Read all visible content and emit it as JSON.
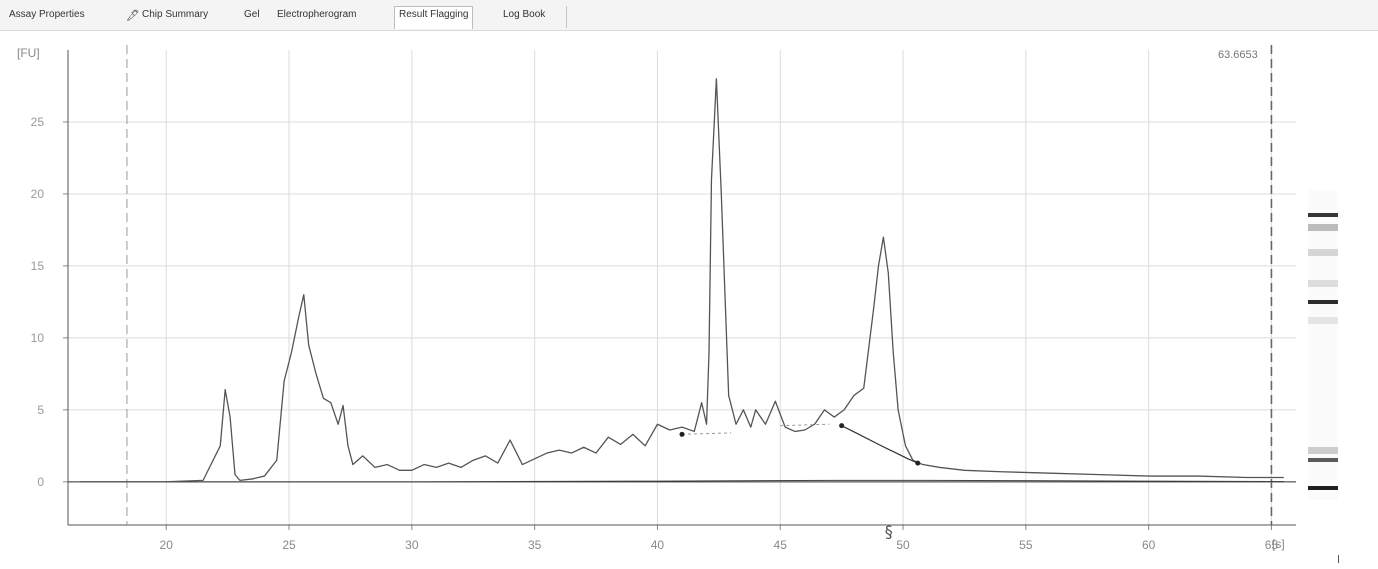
{
  "tabs": [
    {
      "label": "Assay Properties",
      "active": false
    },
    {
      "label": "Chip Summary",
      "active": false,
      "icon": "chip-icon"
    },
    {
      "label": "Gel",
      "active": false
    },
    {
      "label": "Electropherogram",
      "active": false
    },
    {
      "label": "Result Flagging",
      "active": true
    },
    {
      "label": "Log Book",
      "active": false
    }
  ],
  "chart_data": {
    "type": "line",
    "title": "",
    "ylabel": "[FU]",
    "xlabel": "[s]",
    "xlim": [
      16,
      66
    ],
    "ylim": [
      -3,
      30
    ],
    "x_ticks": [
      20,
      25,
      30,
      35,
      40,
      45,
      50,
      55,
      60,
      65
    ],
    "y_ticks": [
      0,
      5,
      10,
      15,
      20,
      25
    ],
    "grid": true,
    "marker_readout": "63.6653",
    "cursor_lines_x": [
      18.4,
      65.0
    ],
    "series": [
      {
        "x": [
          16.5,
          18,
          20,
          21.5,
          22.2,
          22.4,
          22.6,
          22.8,
          23.0,
          23.5,
          24.0,
          24.5,
          24.8,
          25.1,
          25.4,
          25.6,
          25.8,
          26.1,
          26.4,
          26.7,
          27.0,
          27.2,
          27.4,
          27.6,
          28.0,
          28.5,
          29.0,
          29.5,
          30.0,
          30.5,
          31.0,
          31.5,
          32.0,
          32.5,
          33.0,
          33.5,
          34.0,
          34.5,
          35.0,
          35.5,
          36.0,
          36.5,
          37.0,
          37.5,
          38.0,
          38.5,
          39.0,
          39.5,
          40.0,
          40.5,
          41.0,
          41.5,
          41.8,
          42.0,
          42.1,
          42.2,
          42.4,
          42.6,
          42.9,
          43.2,
          43.5,
          43.8,
          44.0,
          44.4,
          44.8,
          45.2,
          45.6,
          46.0,
          46.4,
          46.8,
          47.2,
          47.6,
          48.0,
          48.4,
          48.8,
          49.0,
          49.2,
          49.4,
          49.6,
          49.8,
          50.1,
          50.4,
          50.8,
          51.5,
          52.5,
          54,
          56,
          58,
          60,
          62,
          64,
          65.5
        ],
        "y": [
          0.0,
          0.0,
          0.0,
          0.1,
          2.5,
          6.4,
          4.5,
          0.5,
          0.1,
          0.2,
          0.4,
          1.5,
          7.0,
          9.0,
          11.5,
          13.0,
          9.5,
          7.5,
          5.8,
          5.5,
          4.0,
          5.3,
          2.5,
          1.2,
          1.8,
          1.0,
          1.2,
          0.8,
          0.8,
          1.2,
          1.0,
          1.3,
          1.0,
          1.5,
          1.8,
          1.3,
          2.9,
          1.2,
          1.6,
          2.0,
          2.2,
          2.0,
          2.4,
          2.0,
          3.1,
          2.6,
          3.3,
          2.5,
          4.0,
          3.6,
          3.8,
          3.5,
          5.5,
          4.0,
          9.0,
          21.0,
          28.0,
          20.0,
          6.0,
          4.0,
          5.0,
          3.8,
          5.0,
          4.0,
          5.6,
          3.8,
          3.5,
          3.6,
          4.0,
          5.0,
          4.5,
          5.0,
          6.0,
          6.5,
          12.0,
          15.0,
          17.0,
          14.5,
          9.0,
          5.0,
          2.5,
          1.5,
          1.2,
          1.0,
          0.8,
          0.7,
          0.6,
          0.5,
          0.4,
          0.4,
          0.3,
          0.3
        ]
      }
    ],
    "baseline_fit": {
      "x": [
        20,
        30,
        40,
        47.2,
        51.0,
        55,
        60,
        65.5
      ],
      "y": [
        0.0,
        0.0,
        0.05,
        0.1,
        0.1,
        0.08,
        0.05,
        0.02
      ]
    },
    "peak_integration": {
      "x": [
        47.5,
        48.2,
        49.0,
        49.6,
        50.2,
        50.6
      ],
      "y": [
        3.9,
        3.3,
        2.6,
        2.1,
        1.6,
        1.3
      ]
    },
    "integration_dashes": [
      {
        "x": [
          41.0,
          43.0
        ],
        "y": [
          3.3,
          3.4
        ]
      },
      {
        "x": [
          45.0,
          47.0
        ],
        "y": [
          3.9,
          4.0
        ]
      }
    ],
    "integration_points": [
      {
        "x": 41.0,
        "y": 3.3
      },
      {
        "x": 47.5,
        "y": 3.9
      },
      {
        "x": 50.6,
        "y": 1.3
      }
    ],
    "peak_marker": {
      "x": 49.5,
      "label": "§"
    }
  },
  "gel_bands": [
    {
      "position": 0.08,
      "intensity": 0.85
    },
    {
      "position": 0.12,
      "intensity": 0.4
    },
    {
      "position": 0.2,
      "intensity": 0.25
    },
    {
      "position": 0.3,
      "intensity": 0.2
    },
    {
      "position": 0.36,
      "intensity": 0.9
    },
    {
      "position": 0.42,
      "intensity": 0.15
    },
    {
      "position": 0.84,
      "intensity": 0.3
    },
    {
      "position": 0.87,
      "intensity": 0.7
    },
    {
      "position": 0.96,
      "intensity": 0.95
    }
  ]
}
